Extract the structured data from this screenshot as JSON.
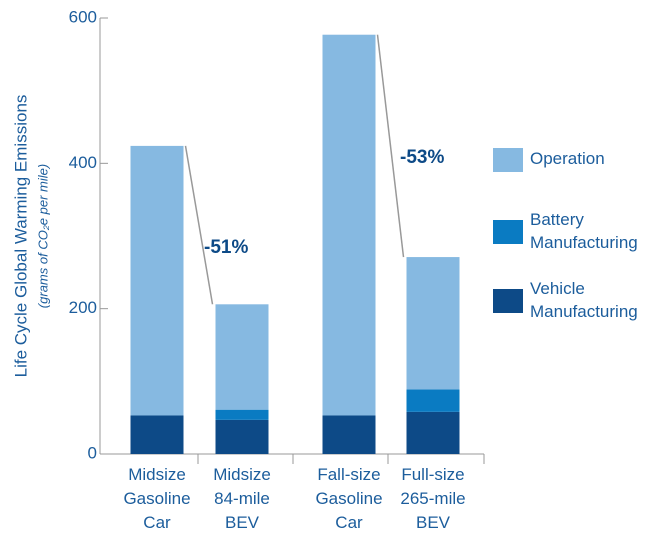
{
  "chart_data": {
    "type": "stacked_bar",
    "y_label": "Life Cycle Global Warming Emissions",
    "y_sublabel": "(grams of CO₂e per mile)",
    "categories": [
      "Midsize Gasoline Car",
      "Midsize 84-mile BEV",
      "Fall-size Gasoline Car",
      "Full-size 265-mile BEV"
    ],
    "series": [
      {
        "name": "Vehicle Manufacturing",
        "color": "#0d4a87",
        "values": [
          53,
          47,
          53,
          58
        ]
      },
      {
        "name": "Battery Manufacturing",
        "color": "#0a7bc2",
        "values": [
          0,
          14,
          0,
          31
        ]
      },
      {
        "name": "Operation",
        "color": "#86b9e1",
        "values": [
          371,
          145,
          524,
          182
        ]
      }
    ],
    "annotations": [
      "-51%",
      "-53%"
    ],
    "ylim": [
      0,
      600
    ],
    "yticks": [
      0,
      200,
      400,
      600
    ]
  }
}
